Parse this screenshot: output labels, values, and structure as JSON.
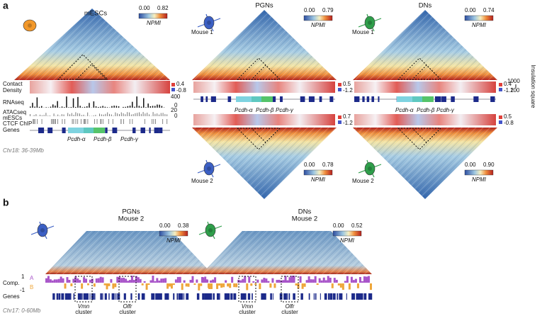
{
  "panel_a": {
    "label": "a",
    "mescs": {
      "title": "mESCs",
      "scale_min": "0.00",
      "scale_max": "0.82",
      "scale_label": "NPMI"
    },
    "tracks": {
      "contact": "Contact",
      "density": "Density",
      "contact_max": "0.4",
      "contact_min": "-0.8",
      "rnaseq": "RNAseq",
      "rnaseq_max": "400",
      "rnaseq_min": "0",
      "atacseq": "ATACseq",
      "atac_sample": "mESCs",
      "atac_max": "20",
      "atac_min": "0",
      "ctcf": "CTCF ChIP",
      "genes": "Genes"
    },
    "genes": [
      "Pcdh-α",
      "Pcdh-β",
      "Pcdh-γ"
    ],
    "region": "Chr18: 36-39Mb",
    "pgns": {
      "title": "PGNs",
      "mouse1": {
        "label": "Mouse 1",
        "scale_min": "0.00",
        "scale_max": "0.79",
        "scale_label": "NPMI",
        "density_max": "0.5",
        "density_min": "-1.2"
      },
      "mouse2": {
        "label": "Mouse 2",
        "scale_min": "0.00",
        "scale_max": "0.78",
        "scale_label": "NPMI",
        "density_max": "0.7",
        "density_min": "-1.2"
      },
      "genes": [
        "Pcdh-α",
        "Pcdh-β",
        "Pcdh-γ"
      ]
    },
    "dns": {
      "title": "DNs",
      "mouse1": {
        "label": "Mouse 1",
        "scale_min": "0.00",
        "scale_max": "0.74",
        "scale_label": "NPMI",
        "density_max": "0.4",
        "density_min": "-1.2"
      },
      "mouse2": {
        "label": "Mouse 2",
        "scale_min": "0.00",
        "scale_max": "0.90",
        "scale_label": "NPMI",
        "density_max": "0.5",
        "density_min": "-0.8"
      },
      "genes": [
        "Pcdh-α",
        "Pcdh-β",
        "Pcdh-γ"
      ],
      "insulation_max": "1000",
      "insulation_min": "100",
      "insulation_label": "Insulation square"
    }
  },
  "panel_b": {
    "label": "b",
    "pgns": {
      "title": "PGNs",
      "subtitle": "Mouse 2",
      "scale_min": "0.00",
      "scale_max": "0.38",
      "scale_label": "NPMI"
    },
    "dns": {
      "title": "DNs",
      "subtitle": "Mouse 2",
      "scale_min": "0.00",
      "scale_max": "0.52",
      "scale_label": "NPMI"
    },
    "comp_label": "Comp.",
    "comp_max": "1",
    "comp_min": "-1",
    "comp_a": "A",
    "comp_b": "B",
    "genes_label": "Genes",
    "clusters": [
      {
        "name": "Vmn",
        "word": "cluster"
      },
      {
        "name": "Olfr",
        "word": "cluster"
      },
      {
        "name": "Vmn",
        "word": "cluster"
      },
      {
        "name": "Olfr",
        "word": "cluster"
      }
    ],
    "region": "Chr17: 0-60Mb"
  }
}
